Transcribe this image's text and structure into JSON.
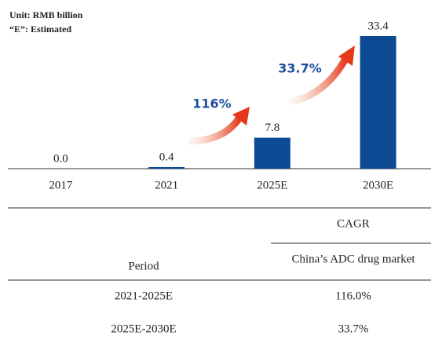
{
  "chart_data": {
    "type": "bar",
    "annotations": {
      "unit": "Unit: RMB billion",
      "estimated": "“E”: Estimated",
      "growth_1": "116%",
      "growth_2": "33.7%"
    },
    "categories": [
      "2017",
      "2021",
      "2025E",
      "2030E"
    ],
    "values": [
      0.0,
      0.4,
      7.8,
      33.4
    ],
    "value_labels": [
      "0.0",
      "0.4",
      "7.8",
      "33.4"
    ],
    "color": "#0d4a94"
  },
  "table": {
    "group_header": "CAGR",
    "period_header": "Period",
    "column_header": "China’s ADC drug market",
    "rows": [
      [
        "2021-2025E",
        "116.0%"
      ],
      [
        "2025E-2030E",
        "33.7%"
      ]
    ]
  }
}
